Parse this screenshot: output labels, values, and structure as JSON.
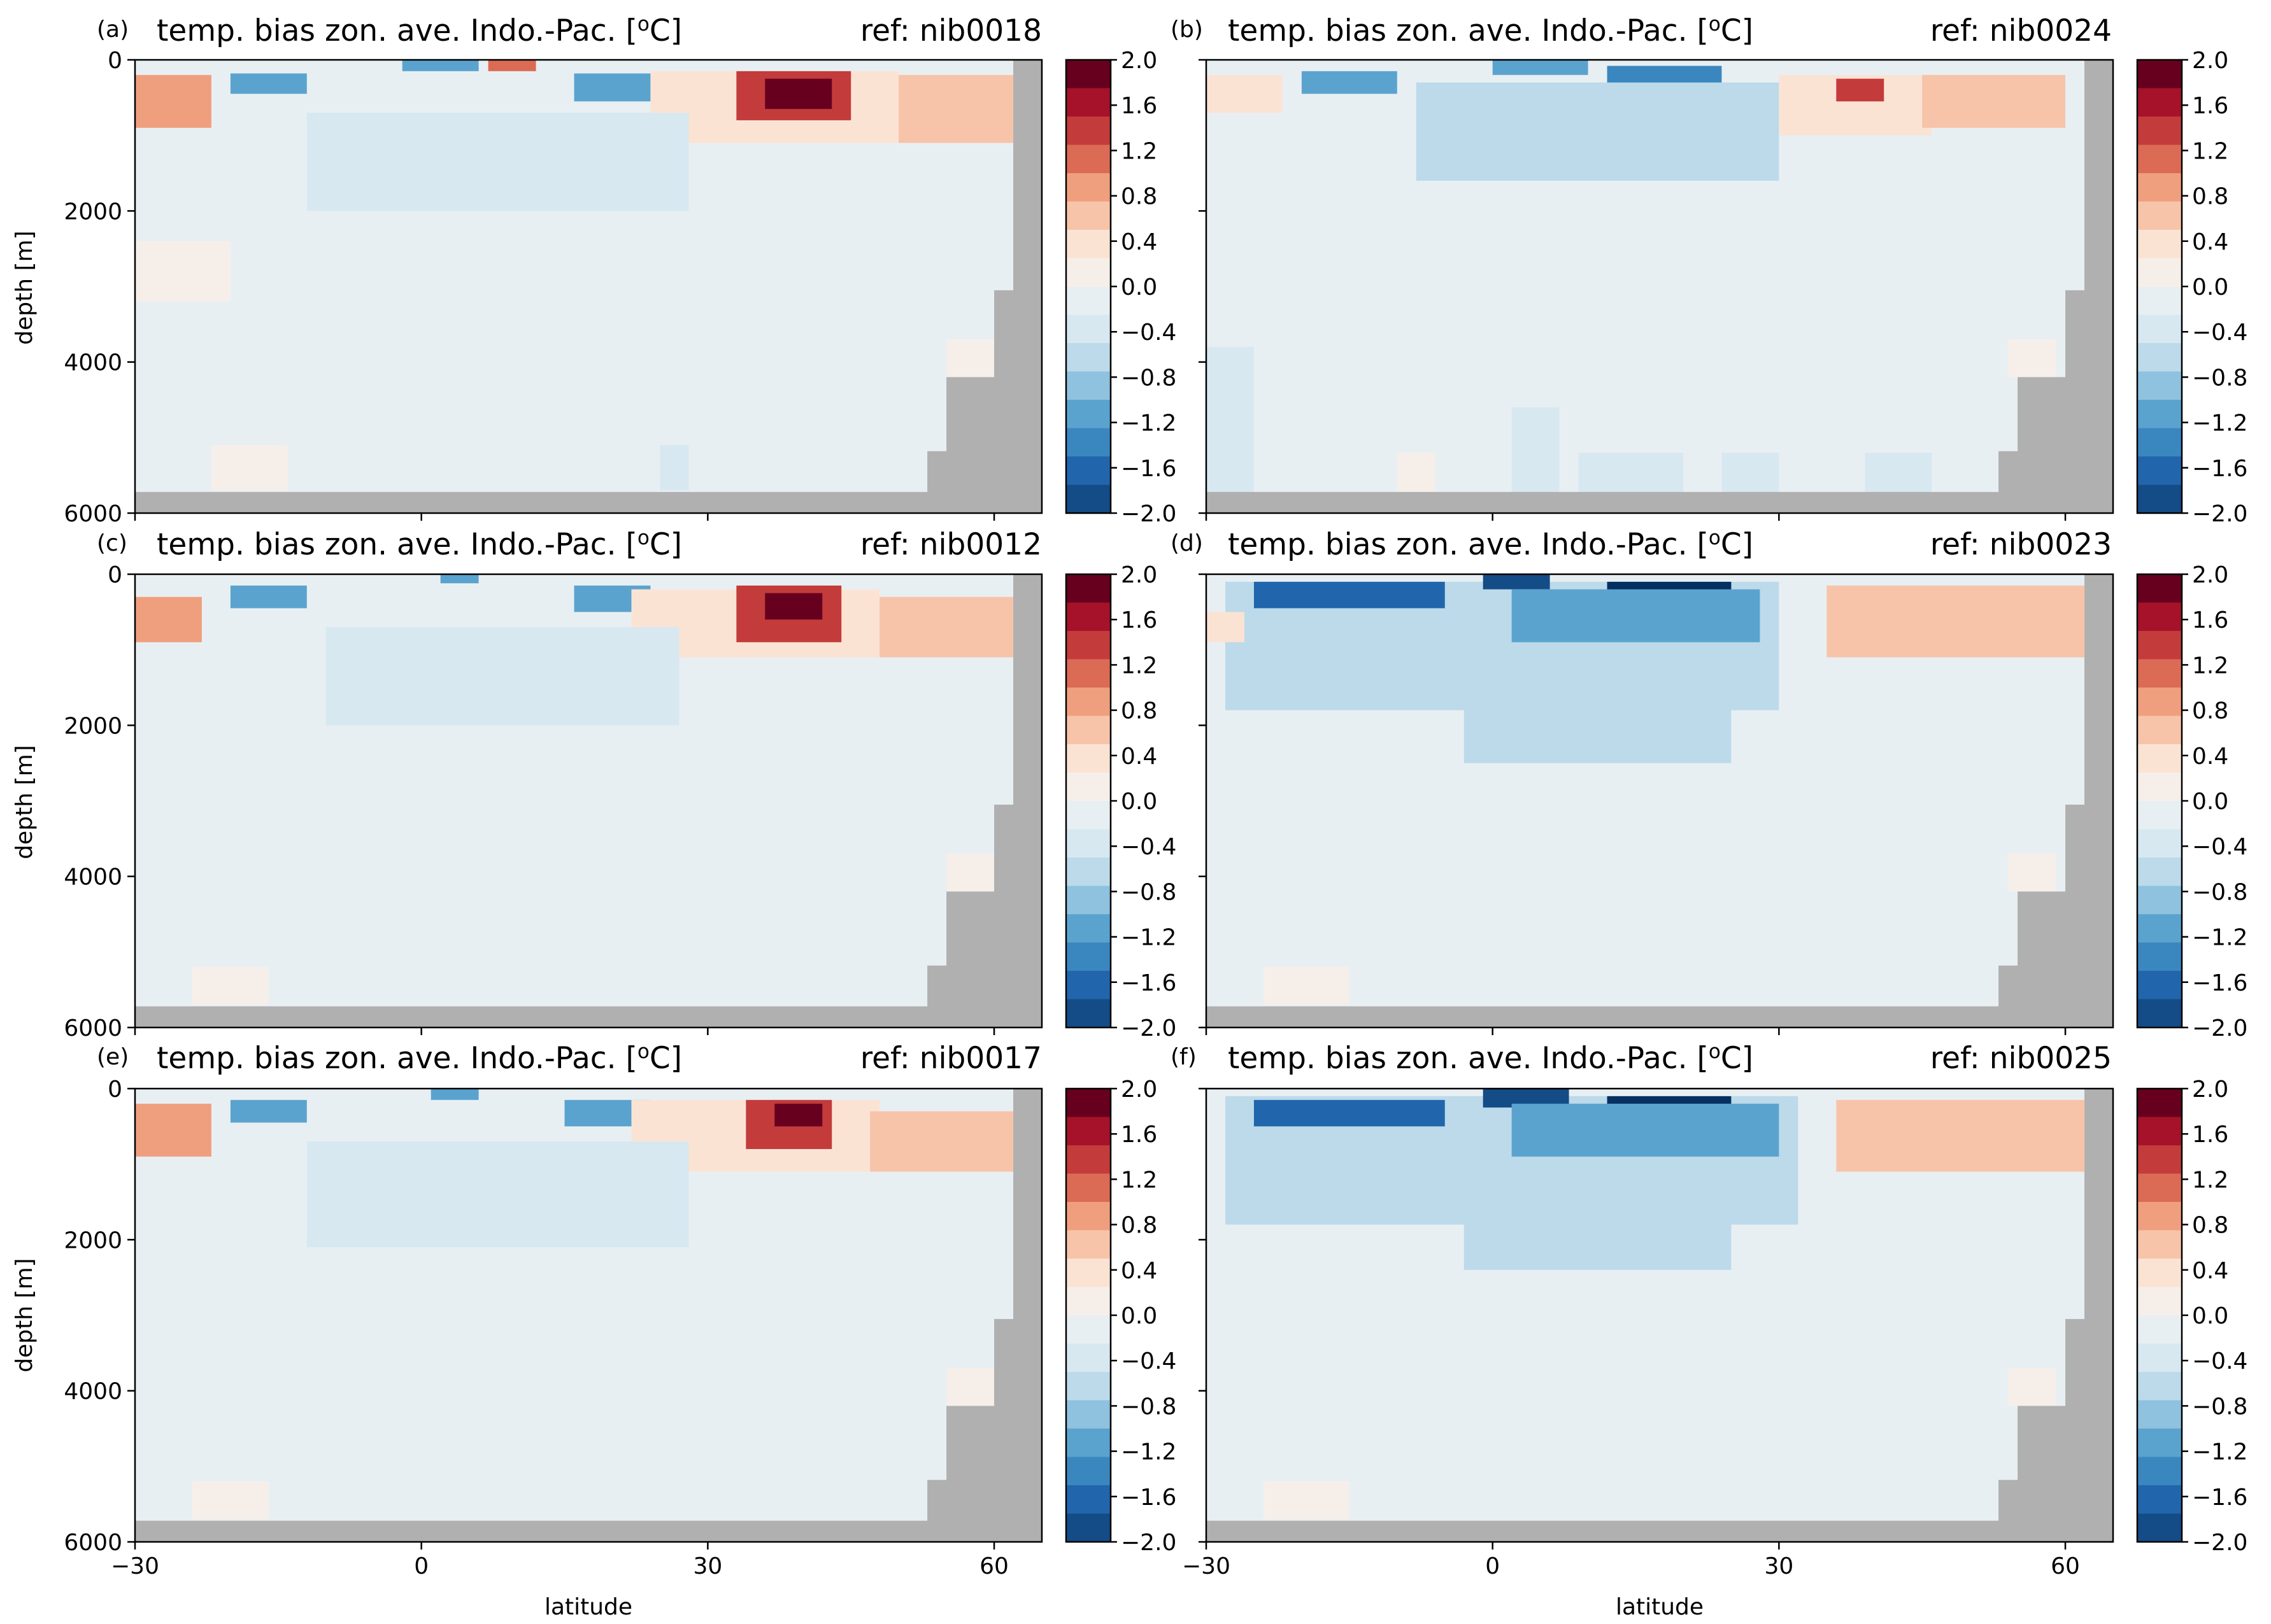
{
  "figure": {
    "xlabel": "latitude",
    "ylabel": "depth [m]",
    "colors": {
      "land": "#b0b0b0",
      "levels": [
        "#053061",
        "#134c87",
        "#2166ac",
        "#3a87c0",
        "#5ba3cf",
        "#8ec2de",
        "#bcdaea",
        "#d7e8f1",
        "#e8eff3",
        "#f6efe9",
        "#fbe3d4",
        "#f7c4a9",
        "#f09f7e",
        "#db6b55",
        "#c33b3b",
        "#a51229",
        "#67001f"
      ]
    }
  },
  "colorbar": {
    "ticks": [
      "2.0",
      "1.6",
      "1.2",
      "0.8",
      "0.4",
      "0.0",
      "−0.4",
      "−0.8",
      "−1.2",
      "−1.6",
      "−2.0"
    ]
  },
  "chart_data": [
    {
      "type": "heatmap",
      "panel": "(a)",
      "title": "temp. bias zon. ave. Indo.-Pac. [°C]",
      "title_parts": {
        "prefix": "temp. bias zon. ave. Indo.-Pac. [",
        "sup": "o",
        "suffix": "C]"
      },
      "ref": "ref: nib0018",
      "xlim": [
        -30,
        65
      ],
      "ylim": [
        6000,
        0
      ],
      "xticks": [
        "−30",
        "0",
        "30",
        "60"
      ],
      "yticks": [
        "0",
        "2000",
        "4000",
        "6000"
      ],
      "clim": [
        -2.0,
        2.0
      ],
      "show_ylabel": true,
      "show_xticks": false,
      "show_xlabel": false,
      "features": [
        {
          "lat": [
            -30,
            -22
          ],
          "depth": [
            200,
            900
          ],
          "value": 0.9
        },
        {
          "lat": [
            -20,
            -12
          ],
          "depth": [
            180,
            450
          ],
          "value": -0.9
        },
        {
          "lat": [
            -2,
            6
          ],
          "depth": [
            0,
            150
          ],
          "value": -1.0
        },
        {
          "lat": [
            7,
            12
          ],
          "depth": [
            0,
            150
          ],
          "value": 1.2
        },
        {
          "lat": [
            16,
            24
          ],
          "depth": [
            180,
            550
          ],
          "value": -1.0
        },
        {
          "lat": [
            24,
            50
          ],
          "depth": [
            150,
            1100
          ],
          "value": 0.6
        },
        {
          "lat": [
            33,
            45
          ],
          "depth": [
            150,
            800
          ],
          "value": 1.6
        },
        {
          "lat": [
            36,
            43
          ],
          "depth": [
            250,
            650
          ],
          "value": 2.0
        },
        {
          "lat": [
            50,
            62
          ],
          "depth": [
            200,
            1100
          ],
          "value": 0.8
        },
        {
          "lat": [
            -12,
            28
          ],
          "depth": [
            700,
            2000
          ],
          "value": -0.3
        },
        {
          "lat": [
            -30,
            -20
          ],
          "depth": [
            2400,
            3200
          ],
          "value": 0.2
        },
        {
          "lat": [
            -22,
            -14
          ],
          "depth": [
            5100,
            5700
          ],
          "value": 0.2
        },
        {
          "lat": [
            25,
            28
          ],
          "depth": [
            5100,
            5700
          ],
          "value": -0.3
        },
        {
          "lat": [
            55,
            60
          ],
          "depth": [
            3700,
            4200
          ],
          "value": 0.3
        }
      ]
    },
    {
      "type": "heatmap",
      "panel": "(b)",
      "title": "temp. bias zon. ave. Indo.-Pac. [°C]",
      "title_parts": {
        "prefix": "temp. bias zon. ave. Indo.-Pac. [",
        "sup": "o",
        "suffix": "C]"
      },
      "ref": "ref: nib0024",
      "xlim": [
        -30,
        65
      ],
      "ylim": [
        6000,
        0
      ],
      "xticks": [
        "−30",
        "0",
        "30",
        "60"
      ],
      "yticks": [
        "0",
        "2000",
        "4000",
        "6000"
      ],
      "clim": [
        -2.0,
        2.0
      ],
      "show_ylabel": false,
      "show_xticks": false,
      "show_xlabel": false,
      "features": [
        {
          "lat": [
            -30,
            -22
          ],
          "depth": [
            200,
            700
          ],
          "value": 0.6
        },
        {
          "lat": [
            -20,
            -10
          ],
          "depth": [
            150,
            450
          ],
          "value": -0.9
        },
        {
          "lat": [
            0,
            10
          ],
          "depth": [
            0,
            200
          ],
          "value": -1.0
        },
        {
          "lat": [
            12,
            24
          ],
          "depth": [
            80,
            400
          ],
          "value": -1.2
        },
        {
          "lat": [
            -8,
            30
          ],
          "depth": [
            300,
            1600
          ],
          "value": -0.5
        },
        {
          "lat": [
            30,
            46
          ],
          "depth": [
            200,
            1000
          ],
          "value": 0.6
        },
        {
          "lat": [
            36,
            41
          ],
          "depth": [
            250,
            550
          ],
          "value": 1.6
        },
        {
          "lat": [
            45,
            60
          ],
          "depth": [
            200,
            900
          ],
          "value": 0.7
        },
        {
          "lat": [
            -30,
            -25
          ],
          "depth": [
            3800,
            5800
          ],
          "value": -0.3
        },
        {
          "lat": [
            -10,
            -6
          ],
          "depth": [
            5200,
            5800
          ],
          "value": 0.3
        },
        {
          "lat": [
            2,
            7
          ],
          "depth": [
            4600,
            5800
          ],
          "value": -0.3
        },
        {
          "lat": [
            9,
            20
          ],
          "depth": [
            5200,
            5800
          ],
          "value": -0.3
        },
        {
          "lat": [
            24,
            30
          ],
          "depth": [
            5200,
            5800
          ],
          "value": -0.3
        },
        {
          "lat": [
            39,
            46
          ],
          "depth": [
            5200,
            5800
          ],
          "value": -0.3
        },
        {
          "lat": [
            54,
            59
          ],
          "depth": [
            3700,
            4200
          ],
          "value": 0.3
        }
      ]
    },
    {
      "type": "heatmap",
      "panel": "(c)",
      "title": "temp. bias zon. ave. Indo.-Pac. [°C]",
      "title_parts": {
        "prefix": "temp. bias zon. ave. Indo.-Pac. [",
        "sup": "o",
        "suffix": "C]"
      },
      "ref": "ref: nib0012",
      "xlim": [
        -30,
        65
      ],
      "ylim": [
        6000,
        0
      ],
      "xticks": [
        "−30",
        "0",
        "30",
        "60"
      ],
      "yticks": [
        "0",
        "2000",
        "4000",
        "6000"
      ],
      "clim": [
        -2.0,
        2.0
      ],
      "show_ylabel": true,
      "show_xticks": false,
      "show_xlabel": false,
      "features": [
        {
          "lat": [
            -30,
            -23
          ],
          "depth": [
            300,
            900
          ],
          "value": 0.9
        },
        {
          "lat": [
            -20,
            -12
          ],
          "depth": [
            150,
            450
          ],
          "value": -1.0
        },
        {
          "lat": [
            2,
            6
          ],
          "depth": [
            0,
            120
          ],
          "value": -1.0
        },
        {
          "lat": [
            16,
            24
          ],
          "depth": [
            150,
            500
          ],
          "value": -1.0
        },
        {
          "lat": [
            22,
            48
          ],
          "depth": [
            200,
            1100
          ],
          "value": 0.6
        },
        {
          "lat": [
            33,
            44
          ],
          "depth": [
            150,
            900
          ],
          "value": 1.6
        },
        {
          "lat": [
            36,
            42
          ],
          "depth": [
            250,
            600
          ],
          "value": 2.0
        },
        {
          "lat": [
            48,
            62
          ],
          "depth": [
            300,
            1100
          ],
          "value": 0.8
        },
        {
          "lat": [
            -10,
            27
          ],
          "depth": [
            700,
            2000
          ],
          "value": -0.3
        },
        {
          "lat": [
            -24,
            -16
          ],
          "depth": [
            5200,
            5700
          ],
          "value": 0.2
        },
        {
          "lat": [
            55,
            60
          ],
          "depth": [
            3700,
            4200
          ],
          "value": 0.3
        }
      ]
    },
    {
      "type": "heatmap",
      "panel": "(d)",
      "title": "temp. bias zon. ave. Indo.-Pac. [°C]",
      "title_parts": {
        "prefix": "temp. bias zon. ave. Indo.-Pac. [",
        "sup": "o",
        "suffix": "C]"
      },
      "ref": "ref: nib0023",
      "xlim": [
        -30,
        65
      ],
      "ylim": [
        6000,
        0
      ],
      "xticks": [
        "−30",
        "0",
        "30",
        "60"
      ],
      "yticks": [
        "0",
        "2000",
        "4000",
        "6000"
      ],
      "clim": [
        -2.0,
        2.0
      ],
      "show_ylabel": false,
      "show_xticks": false,
      "show_xlabel": false,
      "features": [
        {
          "lat": [
            -28,
            30
          ],
          "depth": [
            100,
            1800
          ],
          "value": -0.5
        },
        {
          "lat": [
            -3,
            25
          ],
          "depth": [
            500,
            2500
          ],
          "value": -0.4
        },
        {
          "lat": [
            -25,
            -5
          ],
          "depth": [
            100,
            450
          ],
          "value": -1.6
        },
        {
          "lat": [
            -1,
            6
          ],
          "depth": [
            0,
            200
          ],
          "value": -1.8
        },
        {
          "lat": [
            12,
            25
          ],
          "depth": [
            100,
            450
          ],
          "value": -1.9
        },
        {
          "lat": [
            2,
            28
          ],
          "depth": [
            200,
            900
          ],
          "value": -0.9
        },
        {
          "lat": [
            -30,
            -26
          ],
          "depth": [
            500,
            900
          ],
          "value": 0.5
        },
        {
          "lat": [
            35,
            62
          ],
          "depth": [
            150,
            1100
          ],
          "value": 0.7
        },
        {
          "lat": [
            -24,
            -15
          ],
          "depth": [
            5200,
            5700
          ],
          "value": 0.2
        },
        {
          "lat": [
            54,
            59
          ],
          "depth": [
            3700,
            4200
          ],
          "value": 0.3
        }
      ]
    },
    {
      "type": "heatmap",
      "panel": "(e)",
      "title": "temp. bias zon. ave. Indo.-Pac. [°C]",
      "title_parts": {
        "prefix": "temp. bias zon. ave. Indo.-Pac. [",
        "sup": "o",
        "suffix": "C]"
      },
      "ref": "ref: nib0017",
      "xlim": [
        -30,
        65
      ],
      "ylim": [
        6000,
        0
      ],
      "xticks": [
        "−30",
        "0",
        "30",
        "60"
      ],
      "yticks": [
        "0",
        "2000",
        "4000",
        "6000"
      ],
      "clim": [
        -2.0,
        2.0
      ],
      "show_ylabel": true,
      "show_xticks": true,
      "show_xlabel": true,
      "features": [
        {
          "lat": [
            -30,
            -22
          ],
          "depth": [
            200,
            900
          ],
          "value": 0.9
        },
        {
          "lat": [
            -20,
            -12
          ],
          "depth": [
            150,
            450
          ],
          "value": -1.0
        },
        {
          "lat": [
            1,
            6
          ],
          "depth": [
            0,
            150
          ],
          "value": -1.0
        },
        {
          "lat": [
            15,
            24
          ],
          "depth": [
            150,
            500
          ],
          "value": -1.1
        },
        {
          "lat": [
            22,
            48
          ],
          "depth": [
            150,
            1100
          ],
          "value": 0.6
        },
        {
          "lat": [
            34,
            43
          ],
          "depth": [
            150,
            800
          ],
          "value": 1.6
        },
        {
          "lat": [
            37,
            42
          ],
          "depth": [
            200,
            500
          ],
          "value": 2.0
        },
        {
          "lat": [
            47,
            62
          ],
          "depth": [
            300,
            1100
          ],
          "value": 0.8
        },
        {
          "lat": [
            -12,
            28
          ],
          "depth": [
            700,
            2100
          ],
          "value": -0.3
        },
        {
          "lat": [
            -24,
            -16
          ],
          "depth": [
            5200,
            5700
          ],
          "value": 0.2
        },
        {
          "lat": [
            55,
            60
          ],
          "depth": [
            3700,
            4200
          ],
          "value": 0.3
        }
      ]
    },
    {
      "type": "heatmap",
      "panel": "(f)",
      "title": "temp. bias zon. ave. Indo.-Pac. [°C]",
      "title_parts": {
        "prefix": "temp. bias zon. ave. Indo.-Pac. [",
        "sup": "o",
        "suffix": "C]"
      },
      "ref": "ref: nib0025",
      "xlim": [
        -30,
        65
      ],
      "ylim": [
        6000,
        0
      ],
      "xticks": [
        "−30",
        "0",
        "30",
        "60"
      ],
      "yticks": [
        "0",
        "2000",
        "4000",
        "6000"
      ],
      "clim": [
        -2.0,
        2.0
      ],
      "show_ylabel": false,
      "show_xticks": true,
      "show_xlabel": true,
      "features": [
        {
          "lat": [
            -28,
            32
          ],
          "depth": [
            100,
            1800
          ],
          "value": -0.5
        },
        {
          "lat": [
            -3,
            25
          ],
          "depth": [
            500,
            2400
          ],
          "value": -0.4
        },
        {
          "lat": [
            -25,
            -5
          ],
          "depth": [
            150,
            500
          ],
          "value": -1.6
        },
        {
          "lat": [
            -1,
            8
          ],
          "depth": [
            0,
            250
          ],
          "value": -1.8
        },
        {
          "lat": [
            12,
            25
          ],
          "depth": [
            100,
            450
          ],
          "value": -1.9
        },
        {
          "lat": [
            2,
            30
          ],
          "depth": [
            200,
            900
          ],
          "value": -0.9
        },
        {
          "lat": [
            36,
            62
          ],
          "depth": [
            150,
            1100
          ],
          "value": 0.7
        },
        {
          "lat": [
            -24,
            -15
          ],
          "depth": [
            5200,
            5700
          ],
          "value": 0.2
        },
        {
          "lat": [
            54,
            59
          ],
          "depth": [
            3700,
            4200
          ],
          "value": 0.3
        }
      ]
    }
  ]
}
